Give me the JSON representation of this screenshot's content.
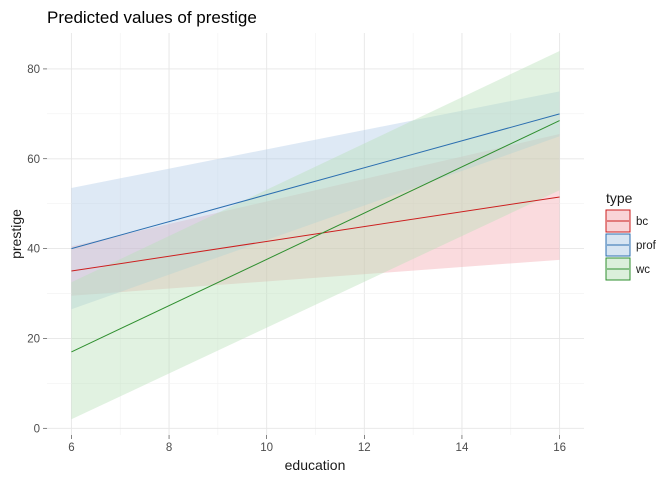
{
  "chart_data": {
    "type": "line",
    "title": "Predicted values of prestige",
    "xlabel": "education",
    "ylabel": "prestige",
    "xlim": [
      5.5,
      16.5
    ],
    "ylim": [
      -1.5,
      88
    ],
    "x_ticks": [
      6,
      8,
      10,
      12,
      14,
      16
    ],
    "y_ticks": [
      0,
      20,
      40,
      60,
      80
    ],
    "grid": true,
    "legend": {
      "title": "type",
      "position": "right"
    },
    "series": [
      {
        "name": "bc",
        "color": "#cc1f1f",
        "band_color": "#f4a9b0",
        "x": [
          6,
          16
        ],
        "y": [
          35,
          51.5
        ],
        "lower": [
          29.5,
          37.5
        ],
        "upper": [
          40.5,
          65.5
        ]
      },
      {
        "name": "prof",
        "color": "#2c6fb0",
        "band_color": "#b0cbe6",
        "x": [
          6,
          16
        ],
        "y": [
          40,
          70
        ],
        "lower": [
          26.5,
          65
        ],
        "upper": [
          53.5,
          75
        ]
      },
      {
        "name": "wc",
        "color": "#2f8f2f",
        "band_color": "#b8e0b8",
        "x": [
          6,
          16
        ],
        "y": [
          17,
          68.5
        ],
        "lower": [
          2,
          53
        ],
        "upper": [
          32.5,
          84
        ]
      }
    ]
  }
}
